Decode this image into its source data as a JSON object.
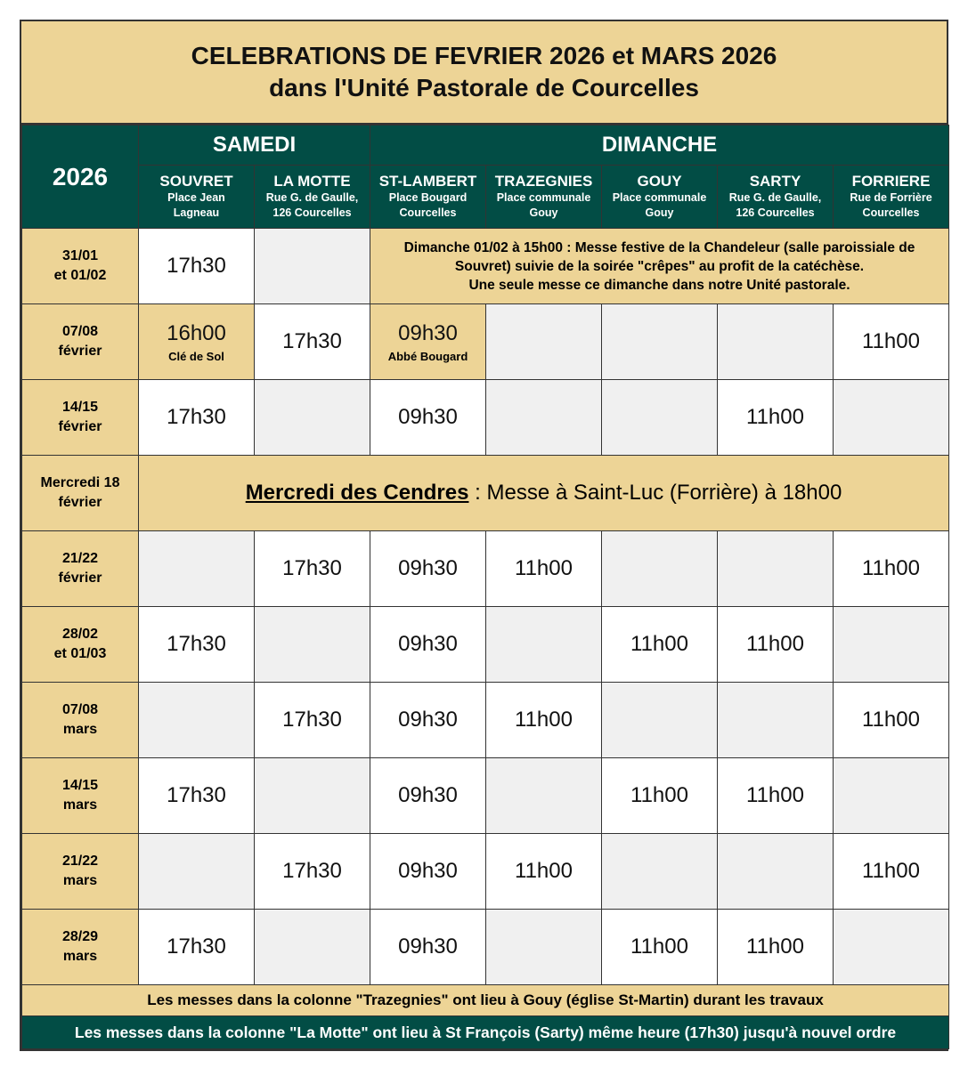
{
  "title": {
    "line1": "CELEBRATIONS DE FEVRIER 2026 et MARS 2026",
    "line2": "dans l'Unité Pastorale de Courcelles"
  },
  "header": {
    "year": "2026",
    "samedi": "SAMEDI",
    "dimanche": "DIMANCHE",
    "columns": [
      {
        "name": "SOUVRET",
        "lines": [
          "Place Jean",
          "Lagneau"
        ]
      },
      {
        "name": "LA MOTTE",
        "lines": [
          "Rue G. de Gaulle,",
          "126 Courcelles"
        ]
      },
      {
        "name": "ST-LAMBERT",
        "lines": [
          "Place Bougard",
          "Courcelles"
        ]
      },
      {
        "name": "TRAZEGNIES",
        "lines": [
          "Place communale",
          "Gouy"
        ]
      },
      {
        "name": "GOUY",
        "lines": [
          "Place communale",
          "Gouy"
        ]
      },
      {
        "name": "SARTY",
        "lines": [
          "Rue G. de Gaulle,",
          "126 Courcelles"
        ]
      },
      {
        "name": "FORRIERE",
        "lines": [
          "Rue de Forrière",
          "Courcelles"
        ]
      }
    ]
  },
  "rows": [
    {
      "date": [
        "31/01",
        "et 01/02"
      ],
      "cells": [
        {
          "time": "17h30"
        },
        {}
      ],
      "note": [
        "Dimanche 01/02 à 15h00 : Messe festive de la Chandeleur  (salle paroissiale de",
        "Souvret) suivie de la soirée \"crêpes\" au profit de la catéchèse.",
        "Une seule messe ce dimanche dans notre Unité pastorale."
      ]
    },
    {
      "date": [
        "07/08",
        "février"
      ],
      "cells": [
        {
          "time": "16h00",
          "sub": "Clé de Sol",
          "highlight": true
        },
        {
          "time": "17h30"
        },
        {
          "time": "09h30",
          "sub": "Abbé Bougard",
          "highlight": true
        },
        {},
        {},
        {},
        {
          "time": "11h00"
        }
      ]
    },
    {
      "date": [
        "14/15",
        "février"
      ],
      "cells": [
        {
          "time": "17h30"
        },
        {},
        {
          "time": "09h30"
        },
        {},
        {},
        {
          "time": "11h00"
        },
        {}
      ]
    },
    {
      "date": [
        "Mercredi 18",
        "février"
      ],
      "event": {
        "title": "Mercredi des Cendres",
        "text": " : Messe à Saint-Luc (Forrière) à 18h00"
      }
    },
    {
      "date": [
        "21/22",
        "février"
      ],
      "cells": [
        {},
        {
          "time": "17h30"
        },
        {
          "time": "09h30"
        },
        {
          "time": "11h00"
        },
        {},
        {},
        {
          "time": "11h00"
        }
      ]
    },
    {
      "date": [
        "28/02",
        "et 01/03"
      ],
      "cells": [
        {
          "time": "17h30"
        },
        {},
        {
          "time": "09h30"
        },
        {},
        {
          "time": "11h00"
        },
        {
          "time": "11h00"
        },
        {}
      ]
    },
    {
      "date": [
        "07/08",
        "mars"
      ],
      "cells": [
        {},
        {
          "time": "17h30"
        },
        {
          "time": "09h30"
        },
        {
          "time": "11h00"
        },
        {},
        {},
        {
          "time": "11h00"
        }
      ]
    },
    {
      "date": [
        "14/15",
        "mars"
      ],
      "cells": [
        {
          "time": "17h30"
        },
        {},
        {
          "time": "09h30"
        },
        {},
        {
          "time": "11h00"
        },
        {
          "time": "11h00"
        },
        {}
      ]
    },
    {
      "date": [
        "21/22",
        "mars"
      ],
      "cells": [
        {},
        {
          "time": "17h30"
        },
        {
          "time": "09h30"
        },
        {
          "time": "11h00"
        },
        {},
        {},
        {
          "time": "11h00"
        }
      ]
    },
    {
      "date": [
        "28/29",
        "mars"
      ],
      "cells": [
        {
          "time": "17h30"
        },
        {},
        {
          "time": "09h30"
        },
        {},
        {
          "time": "11h00"
        },
        {
          "time": "11h00"
        },
        {}
      ]
    }
  ],
  "footer": {
    "note1": "Les messes dans la colonne \"Trazegnies\" ont lieu à Gouy (église St-Martin) durant les travaux",
    "note2": "Les messes dans la colonne \"La Motte\" ont lieu à St François (Sarty) même heure (17h30) jusqu'à nouvel ordre"
  },
  "colors": {
    "tan": "#EDD496",
    "green": "#024D45",
    "empty": "#F0F0F0"
  }
}
